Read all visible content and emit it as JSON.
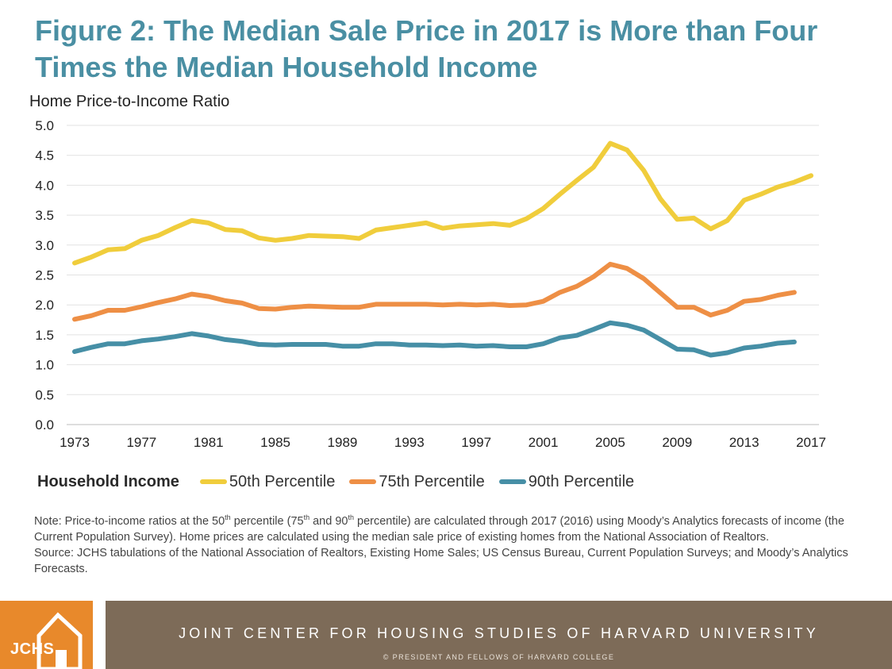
{
  "title": "Figure 2: The Median Sale Price in 2017 is More than Four Times the Median Household Income",
  "legend_title": "Household Income",
  "notes": {
    "note": {
      "p1": "Note: Price-to-income ratios at the 50",
      "s1": "th",
      "p2": " percentile (75",
      "s2": "th",
      "p3": " and 90",
      "s3": "th",
      "p4": " percentile) are calculated through 2017 (2016) using Moody’s Analytics forecasts of income (the Current Population Survey). Home prices are calculated using the median sale price of existing homes from the National Association of Realtors."
    },
    "source": "Source: JCHS tabulations of the National Association of Realtors, Existing Home Sales; US Census Bureau, Current Population Surveys; and Moody’s Analytics Forecasts."
  },
  "footer": {
    "logo_text": "JCHS",
    "organization": "JOINT CENTER FOR HOUSING STUDIES OF HARVARD UNIVERSITY",
    "copyright": "© PRESIDENT AND FELLOWS OF HARVARD COLLEGE",
    "logo_color": "#e8892b",
    "bar_color": "#7d6b58"
  },
  "chart_data": {
    "type": "line",
    "ylabel": "Home Price-to-Income Ratio",
    "xlabel": "",
    "ylim": [
      0,
      5.0
    ],
    "xlim": [
      1973,
      2017
    ],
    "yticks": [
      "0.0",
      "0.5",
      "1.0",
      "1.5",
      "2.0",
      "2.5",
      "3.0",
      "3.5",
      "4.0",
      "4.5",
      "5.0"
    ],
    "xticks": [
      "1973",
      "1977",
      "1981",
      "1985",
      "1989",
      "1993",
      "1997",
      "2001",
      "2005",
      "2009",
      "2013",
      "2017"
    ],
    "grid": true,
    "legend_position": "bottom",
    "series": [
      {
        "name": "50th Percentile",
        "color": "#f0cd3c",
        "x": [
          1973,
          1974,
          1975,
          1976,
          1977,
          1978,
          1979,
          1980,
          1981,
          1982,
          1983,
          1984,
          1985,
          1986,
          1987,
          1988,
          1989,
          1990,
          1991,
          1992,
          1993,
          1994,
          1995,
          1996,
          1997,
          1998,
          1999,
          2000,
          2001,
          2002,
          2003,
          2004,
          2005,
          2006,
          2007,
          2008,
          2009,
          2010,
          2011,
          2012,
          2013,
          2014,
          2015,
          2016,
          2017
        ],
        "values": [
          2.7,
          2.8,
          2.92,
          2.94,
          3.08,
          3.16,
          3.29,
          3.41,
          3.37,
          3.26,
          3.24,
          3.12,
          3.08,
          3.11,
          3.16,
          3.15,
          3.14,
          3.11,
          3.25,
          3.29,
          3.33,
          3.37,
          3.28,
          3.32,
          3.34,
          3.36,
          3.33,
          3.44,
          3.61,
          3.85,
          4.08,
          4.3,
          4.7,
          4.59,
          4.25,
          3.77,
          3.43,
          3.45,
          3.27,
          3.41,
          3.75,
          3.85,
          3.97,
          4.05,
          4.16
        ]
      },
      {
        "name": "75th Percentile",
        "color": "#ee8f45",
        "x": [
          1973,
          1974,
          1975,
          1976,
          1977,
          1978,
          1979,
          1980,
          1981,
          1982,
          1983,
          1984,
          1985,
          1986,
          1987,
          1988,
          1989,
          1990,
          1991,
          1992,
          1993,
          1994,
          1995,
          1996,
          1997,
          1998,
          1999,
          2000,
          2001,
          2002,
          2003,
          2004,
          2005,
          2006,
          2007,
          2008,
          2009,
          2010,
          2011,
          2012,
          2013,
          2014,
          2015,
          2016
        ],
        "values": [
          1.76,
          1.82,
          1.91,
          1.91,
          1.97,
          2.04,
          2.1,
          2.18,
          2.14,
          2.07,
          2.03,
          1.94,
          1.93,
          1.96,
          1.98,
          1.97,
          1.96,
          1.96,
          2.01,
          2.01,
          2.01,
          2.01,
          2.0,
          2.01,
          2.0,
          2.01,
          1.99,
          2.0,
          2.06,
          2.21,
          2.31,
          2.47,
          2.68,
          2.61,
          2.44,
          2.2,
          1.96,
          1.96,
          1.83,
          1.91,
          2.06,
          2.09,
          2.16,
          2.21
        ]
      },
      {
        "name": "90th Percentile",
        "color": "#468fa6",
        "x": [
          1973,
          1974,
          1975,
          1976,
          1977,
          1978,
          1979,
          1980,
          1981,
          1982,
          1983,
          1984,
          1985,
          1986,
          1987,
          1988,
          1989,
          1990,
          1991,
          1992,
          1993,
          1994,
          1995,
          1996,
          1997,
          1998,
          1999,
          2000,
          2001,
          2002,
          2003,
          2004,
          2005,
          2006,
          2007,
          2008,
          2009,
          2010,
          2011,
          2012,
          2013,
          2014,
          2015,
          2016
        ],
        "values": [
          1.22,
          1.29,
          1.35,
          1.35,
          1.4,
          1.43,
          1.47,
          1.52,
          1.48,
          1.42,
          1.39,
          1.34,
          1.33,
          1.34,
          1.34,
          1.34,
          1.31,
          1.31,
          1.35,
          1.35,
          1.33,
          1.33,
          1.32,
          1.33,
          1.31,
          1.32,
          1.3,
          1.3,
          1.35,
          1.45,
          1.49,
          1.59,
          1.7,
          1.66,
          1.58,
          1.42,
          1.26,
          1.25,
          1.16,
          1.2,
          1.28,
          1.31,
          1.36,
          1.38
        ]
      }
    ]
  }
}
